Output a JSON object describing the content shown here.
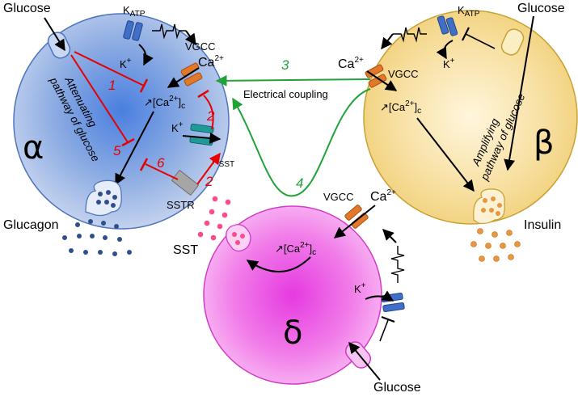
{
  "labels": {
    "glucose_alpha": "Glucose",
    "glucose_beta": "Glucose",
    "glucose_delta": "Glucose",
    "katp_alpha_main": "K",
    "katp_alpha_sub": "ATP",
    "katp_beta_main": "K",
    "katp_beta_sub": "ATP",
    "k_plus_main": "K",
    "k_plus_sup": "+",
    "vgcc": "VGCC",
    "ca_main": "Ca",
    "ca_sup": "2+",
    "ca_c_arrow": "↗[Ca",
    "ca_c_close": "]",
    "ca_c_sub": "c",
    "ksst_main": "K",
    "ksst_sub": "SST",
    "sstr": "SSTR",
    "glucagon": "Glucagon",
    "sst": "SST",
    "insulin": "Insulin",
    "electrical_coupling": "Electrical coupling",
    "alpha": "α",
    "beta": "β",
    "delta": "δ",
    "attenuating_line1": "Attenuating",
    "attenuating_line2": "pathway of glucose",
    "amplifying_line1": "Amplifying",
    "amplifying_line2": "pathway of glucose"
  },
  "numbers": {
    "n1": "1",
    "n2a": "2",
    "n2b": "2",
    "n3": "3",
    "n4": "4",
    "n5": "5",
    "n6": "6"
  },
  "colors": {
    "alpha_cell": "#6f93d9",
    "beta_cell": "#f2cf7a",
    "delta_cell": "#f06ae6",
    "katp_channel": "#3f6fc6",
    "vgcc_channel": "#e2782a",
    "ksst_channel": "#1f9a98",
    "sstr": "#a6a6a6",
    "inhibit_red": "#e60000",
    "green_arrow": "#22a33a",
    "glucagon_granule": "#2e4f8f",
    "sst_granule": "#ff4b8a",
    "insulin_granule": "#e8973e"
  }
}
